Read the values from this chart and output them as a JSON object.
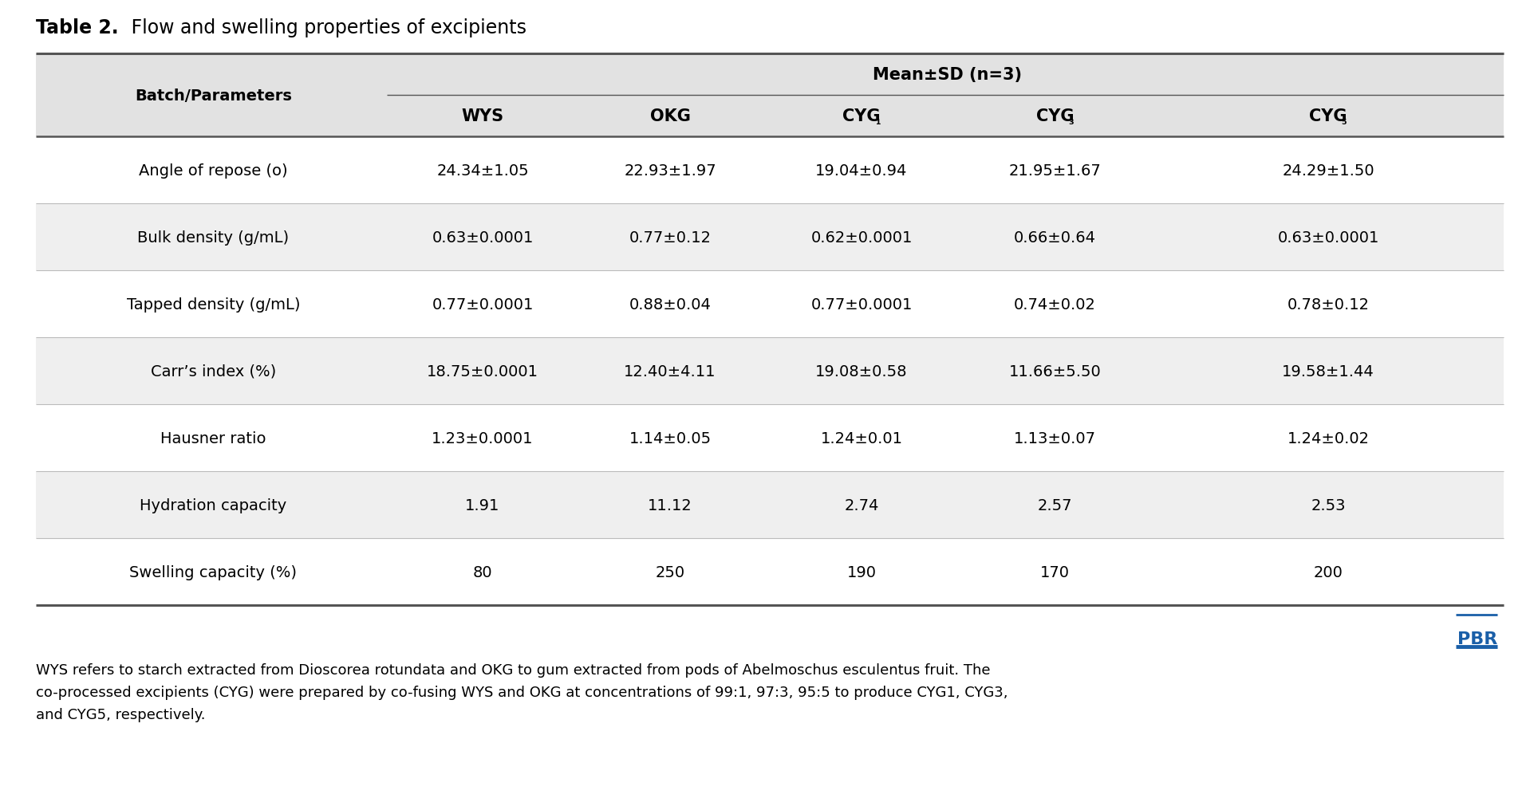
{
  "title_bold": "Table 2.",
  "title_normal": " Flow and swelling properties of excipients",
  "header_group": "Mean±SD (n=3)",
  "col_header_left": "Batch/Parameters",
  "col_headers": [
    "WYS",
    "OKG",
    "CYG₁",
    "CYG₃",
    "CYG₅"
  ],
  "rows": [
    {
      "param": "Angle of repose (o)",
      "values": [
        "24.34±1.05",
        "22.93±1.97",
        "19.04±0.94",
        "21.95±1.67",
        "24.29±1.50"
      ],
      "shaded": false
    },
    {
      "param": "Bulk density (g/mL)",
      "values": [
        "0.63±0.0001",
        "0.77±0.12",
        "0.62±0.0001",
        "0.66±0.64",
        "0.63±0.0001"
      ],
      "shaded": true
    },
    {
      "param": "Tapped density (g/mL)",
      "values": [
        "0.77±0.0001",
        "0.88±0.04",
        "0.77±0.0001",
        "0.74±0.02",
        "0.78±0.12"
      ],
      "shaded": false
    },
    {
      "param": "Carr’s index (%)",
      "values": [
        "18.75±0.0001",
        "12.40±4.11",
        "19.08±0.58",
        "11.66±5.50",
        "19.58±1.44"
      ],
      "shaded": true
    },
    {
      "param": "Hausner ratio",
      "values": [
        "1.23±0.0001",
        "1.14±0.05",
        "1.24±0.01",
        "1.13±0.07",
        "1.24±0.02"
      ],
      "shaded": false
    },
    {
      "param": "Hydration capacity",
      "values": [
        "1.91",
        "11.12",
        "2.74",
        "2.57",
        "2.53"
      ],
      "shaded": true
    },
    {
      "param": "Swelling capacity (%)",
      "values": [
        "80",
        "250",
        "190",
        "170",
        "200"
      ],
      "shaded": false
    }
  ],
  "footer_line1": "WYS refers to starch extracted from Dioscorea rotundata and OKG to gum extracted from pods of Abelmoschus esculentus fruit. The",
  "footer_line2": "co-processed excipients (CYG) were prepared by co-fusing WYS and OKG at concentrations of 99:1, 97:3, 95:5 to produce CYG1, CYG3,",
  "footer_line3": "and CYG5, respectively.",
  "pbr_text": "PBR",
  "bg_color": "#ffffff",
  "header_bg": "#e2e2e2",
  "row_shaded_bg": "#efefef",
  "row_normal_bg": "#ffffff",
  "text_color": "#000000",
  "title_color": "#000000",
  "line_color": "#555555",
  "sep_line_color": "#bbbbbb",
  "pbr_color": "#1a5fa8"
}
